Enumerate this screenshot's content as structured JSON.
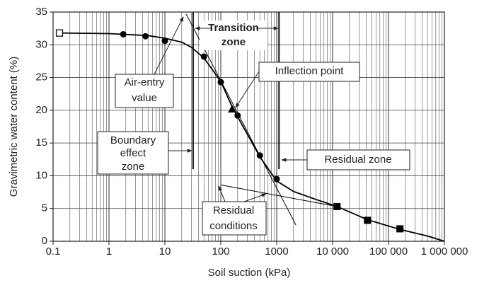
{
  "chart_data": {
    "type": "scatter",
    "x_label": "Soil suction (kPa)",
    "y_label": "Gravimetric water content (%)",
    "xscale": "log",
    "xlim": [
      0.1,
      1000000
    ],
    "xticks": [
      0.1,
      1,
      10,
      100,
      1000,
      {
        "value": 10000,
        "label": "10 000"
      },
      {
        "value": 100000,
        "label": "100 000"
      },
      {
        "value": 1000000,
        "label": "1 000 000"
      }
    ],
    "ylim": [
      0,
      35
    ],
    "yticks": [
      0,
      5,
      10,
      15,
      20,
      25,
      30,
      35
    ],
    "grid": true,
    "minor_grid": true,
    "color": "#000000",
    "zone_lines": [
      32,
      1100
    ],
    "series": [
      {
        "marker": "line",
        "x": [
          0.13,
          1,
          5,
          10,
          20,
          30,
          50,
          100,
          160,
          200,
          500,
          1000,
          2000,
          5000,
          12000,
          42000,
          160000,
          500000,
          1000000
        ],
        "values": [
          31.8,
          31.7,
          31.4,
          31.0,
          30.4,
          29.6,
          28.0,
          24.4,
          20.5,
          19.0,
          12.9,
          9.2,
          7.6,
          6.4,
          5.3,
          3.3,
          1.8,
          0.8,
          0
        ]
      },
      {
        "marker": "thin-line",
        "x": [
          24,
          2200
        ],
        "values": [
          34.7,
          2.5
        ]
      },
      {
        "marker": "thin-line",
        "x": [
          100,
          12000
        ],
        "values": [
          8.6,
          5.3
        ]
      },
      {
        "marker": "open-square",
        "x": [
          0.13
        ],
        "values": [
          31.8
        ]
      },
      {
        "marker": "circle",
        "x": [
          1.8,
          4.5,
          10,
          50,
          100,
          200,
          500,
          1000
        ],
        "values": [
          31.6,
          31.3,
          30.6,
          28.2,
          24.3,
          19.2,
          13.1,
          9.5
        ]
      },
      {
        "marker": "triangle",
        "x": [
          160
        ],
        "values": [
          20.2
        ]
      },
      {
        "marker": "square",
        "x": [
          12000,
          42000,
          160000
        ],
        "values": [
          5.3,
          3.2,
          1.9
        ]
      }
    ],
    "annotations": [
      {
        "lines": [
          "Transition",
          "zone"
        ]
      },
      {
        "lines": [
          "Air-entry",
          "value"
        ]
      },
      {
        "lines": [
          "Inflection point"
        ]
      },
      {
        "lines": [
          "Boundary",
          "effect",
          "zone"
        ]
      },
      {
        "lines": [
          "Residual zone"
        ]
      },
      {
        "lines": [
          "Residual",
          "conditions"
        ]
      }
    ]
  }
}
